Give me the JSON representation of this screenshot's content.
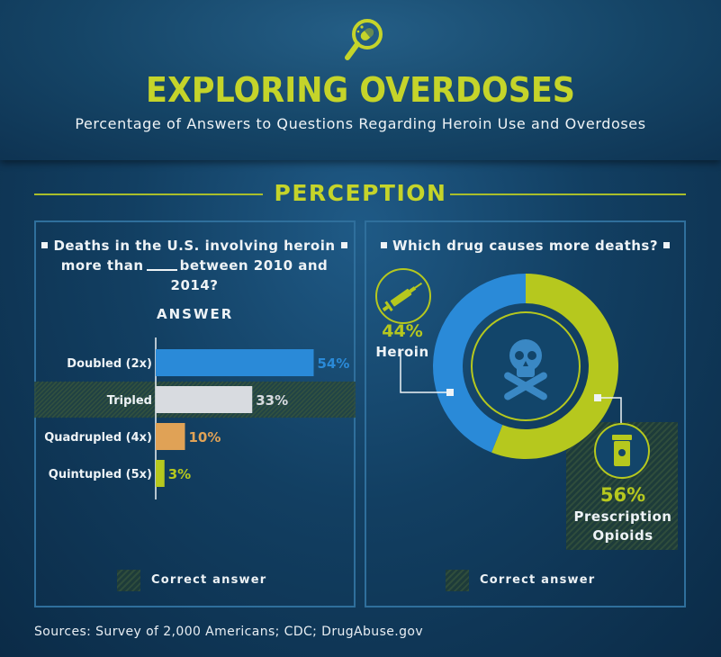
{
  "header": {
    "title": "EXPLORING OVERDOSES",
    "subtitle": "Percentage of Answers to Questions Regarding Heroin Use and Overdoses",
    "logo_icon": "magnifier-pill-icon"
  },
  "section": {
    "title": "PERCEPTION"
  },
  "left_panel": {
    "question_line1": "Deaths in the U.S. involving heroin",
    "question_line2a": "more than",
    "question_line2b": "between 2010 and",
    "question_line3": "2014?",
    "answer_label": "ANSWER",
    "legend_label": "Correct answer"
  },
  "right_panel": {
    "question": "Which drug causes more deaths?",
    "legend_label": "Correct answer",
    "heroin_pct": "44%",
    "heroin_label": "Heroin",
    "opioids_pct": "56%",
    "opioids_label_line1": "Prescription",
    "opioids_label_line2": "Opioids"
  },
  "sources": "Sources: Survey of 2,000 Americans; CDC; DrugAbuse.gov",
  "colors": {
    "accent": "#c5d42a",
    "blue": "#2a8ad8",
    "gray": "#d8dbe0",
    "orange": "#e0a256",
    "lime": "#b6c81e"
  },
  "chart_data": [
    {
      "type": "bar",
      "orientation": "horizontal",
      "categories": [
        "Doubled (2x)",
        "Tripled",
        "Quadrupled (4x)",
        "Quintupled (5x)"
      ],
      "values": [
        54,
        33,
        10,
        3
      ],
      "value_labels": [
        "54%",
        "33%",
        "10%",
        "3%"
      ],
      "colors": [
        "#2a8ad8",
        "#d8dbe0",
        "#e0a256",
        "#b6c81e"
      ],
      "correct_answer": "Tripled",
      "title": "Deaths in the U.S. involving heroin more than ____ between 2010 and 2014?",
      "xlabel": "",
      "ylabel": "ANSWER",
      "xlim": [
        0,
        100
      ]
    },
    {
      "type": "pie",
      "style": "donut",
      "labels": [
        "Heroin",
        "Prescription Opioids"
      ],
      "values": [
        44,
        56
      ],
      "value_labels": [
        "44%",
        "56%"
      ],
      "colors": [
        "#2a8ad8",
        "#b6c81e"
      ],
      "correct_answer": "Prescription Opioids",
      "title": "Which drug causes more deaths?"
    }
  ]
}
